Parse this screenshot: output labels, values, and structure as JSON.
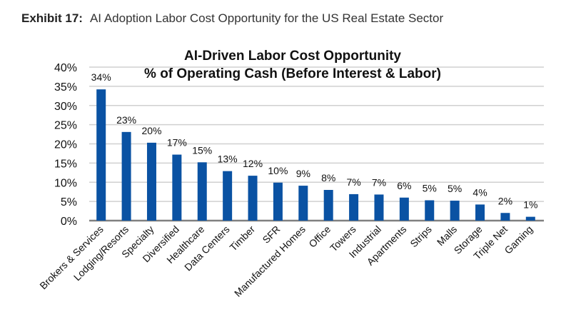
{
  "header": {
    "exhibit_label": "Exhibit 17:",
    "exhibit_title": "AI Adoption Labor Cost Opportunity for the US Real Estate Sector"
  },
  "chart_data": {
    "type": "bar",
    "title": "AI-Driven Labor Cost Opportunity",
    "subtitle": "% of Operating Cash (Before Interest & Labor)",
    "categories": [
      "Brokers & Services",
      "Lodging/Resorts",
      "Specialty",
      "Diversified",
      "Healthcare",
      "Data Centers",
      "Timber",
      "SFR",
      "Manufactured Homes",
      "Office",
      "Towers",
      "Industrial",
      "Apartments",
      "Strips",
      "Malls",
      "Storage",
      "Triple Net",
      "Gaming"
    ],
    "values": [
      34.2,
      23.1,
      20.3,
      17.2,
      15.2,
      12.9,
      11.7,
      9.9,
      9.1,
      8.0,
      6.9,
      6.8,
      6.0,
      5.3,
      5.2,
      4.2,
      2.0,
      1.0
    ],
    "data_labels": [
      "34%",
      "23%",
      "20%",
      "17%",
      "15%",
      "13%",
      "12%",
      "10%",
      "9%",
      "8%",
      "7%",
      "7%",
      "6%",
      "5%",
      "5%",
      "4%",
      "2%",
      "1%"
    ],
    "ylim": [
      0,
      40
    ],
    "yticks": [
      "0%",
      "5%",
      "10%",
      "15%",
      "20%",
      "25%",
      "30%",
      "35%",
      "40%"
    ],
    "grid": true,
    "bar_color": "#0a52a3"
  }
}
